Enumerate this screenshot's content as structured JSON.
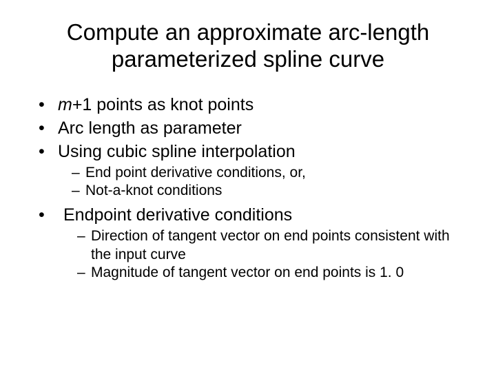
{
  "title": "Compute an approximate arc-length parameterized spline curve",
  "bullets": {
    "b1_prefix_italic": "m",
    "b1_rest": "+1 points as knot points",
    "b2": "Arc length as parameter",
    "b3": "Using cubic spline interpolation",
    "b3_sub1": "End point derivative conditions, or,",
    "b3_sub2": "Not-a-knot conditions",
    "b4": "Endpoint derivative conditions",
    "b4_sub1": "Direction of tangent vector on end points consistent with the input curve",
    "b4_sub2": "Magnitude of tangent vector on end points is 1. 0"
  },
  "colors": {
    "background": "#ffffff",
    "text": "#000000"
  },
  "typography": {
    "title_fontsize": 33,
    "bullet_fontsize": 25,
    "sub_fontsize": 21,
    "font_family": "Arial"
  }
}
